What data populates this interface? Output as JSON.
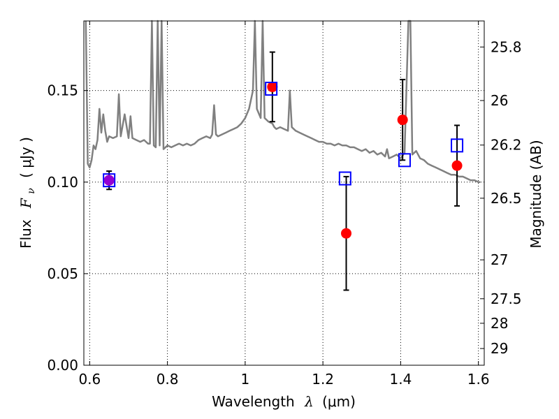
{
  "chart_data": {
    "type": "scatter",
    "title": "",
    "xlabel": "Wavelength",
    "xlabel_symbol": "λ",
    "xlabel_unit": "(μm)",
    "ylabel": "Flux",
    "ylabel_symbol": "F",
    "ylabel_subscript": "ν",
    "ylabel_unit": "( μJy )",
    "y2label": "Magnitude (AB)",
    "xlim": [
      0.585,
      1.615
    ],
    "ylim": [
      0.0,
      0.188
    ],
    "grid": true,
    "grid_style": "dotted",
    "x_ticks": [
      {
        "value": 0.6,
        "label": "0.6"
      },
      {
        "value": 0.8,
        "label": "0.8"
      },
      {
        "value": 1.0,
        "label": "1"
      },
      {
        "value": 1.2,
        "label": "1.2"
      },
      {
        "value": 1.4,
        "label": "1.4"
      },
      {
        "value": 1.6,
        "label": "1.6"
      }
    ],
    "y_ticks": [
      {
        "value": 0.0,
        "label": "0.00"
      },
      {
        "value": 0.05,
        "label": "0.05"
      },
      {
        "value": 0.1,
        "label": "0.10"
      },
      {
        "value": 0.15,
        "label": "0.15"
      }
    ],
    "y2_ticks": [
      {
        "value": 25.8,
        "label": "25.8"
      },
      {
        "value": 26.0,
        "label": "26"
      },
      {
        "value": 26.2,
        "label": "26.2"
      },
      {
        "value": 26.5,
        "label": "26.5"
      },
      {
        "value": 27.0,
        "label": "27"
      },
      {
        "value": 27.5,
        "label": "27.5"
      },
      {
        "value": 28.0,
        "label": "28"
      },
      {
        "value": 29.0,
        "label": "29"
      }
    ],
    "series": [
      {
        "kind": "line",
        "color": "#808080",
        "x": [
          0.59,
          0.595,
          0.6,
          0.605,
          0.61,
          0.615,
          0.62,
          0.625,
          0.63,
          0.635,
          0.64,
          0.645,
          0.65,
          0.66,
          0.67,
          0.675,
          0.68,
          0.69,
          0.7,
          0.705,
          0.71,
          0.72,
          0.73,
          0.74,
          0.75,
          0.755,
          0.76,
          0.765,
          0.77,
          0.775,
          0.78,
          0.785,
          0.79,
          0.8,
          0.81,
          0.82,
          0.83,
          0.84,
          0.85,
          0.86,
          0.87,
          0.88,
          0.89,
          0.9,
          0.91,
          0.915,
          0.92,
          0.925,
          0.93,
          0.94,
          0.95,
          0.96,
          0.97,
          0.98,
          0.99,
          1.0,
          1.01,
          1.02,
          1.025,
          1.03,
          1.04,
          1.045,
          1.05,
          1.06,
          1.07,
          1.075,
          1.08,
          1.09,
          1.1,
          1.11,
          1.115,
          1.12,
          1.13,
          1.14,
          1.15,
          1.16,
          1.17,
          1.18,
          1.19,
          1.2,
          1.21,
          1.22,
          1.23,
          1.24,
          1.25,
          1.26,
          1.27,
          1.28,
          1.29,
          1.3,
          1.31,
          1.32,
          1.33,
          1.34,
          1.35,
          1.36,
          1.365,
          1.37,
          1.38,
          1.39,
          1.4,
          1.41,
          1.42,
          1.425,
          1.43,
          1.44,
          1.45,
          1.46,
          1.47,
          1.48,
          1.49,
          1.5,
          1.51,
          1.52,
          1.53,
          1.54,
          1.55,
          1.56,
          1.57,
          1.58,
          1.59,
          1.6,
          1.605
        ],
        "y": [
          0.188,
          0.11,
          0.108,
          0.112,
          0.12,
          0.118,
          0.123,
          0.14,
          0.127,
          0.137,
          0.128,
          0.122,
          0.125,
          0.124,
          0.125,
          0.148,
          0.125,
          0.137,
          0.124,
          0.136,
          0.124,
          0.123,
          0.122,
          0.123,
          0.121,
          0.121,
          0.188,
          0.12,
          0.119,
          0.188,
          0.12,
          0.188,
          0.118,
          0.12,
          0.119,
          0.12,
          0.121,
          0.12,
          0.121,
          0.12,
          0.121,
          0.123,
          0.124,
          0.125,
          0.124,
          0.126,
          0.142,
          0.126,
          0.125,
          0.126,
          0.127,
          0.128,
          0.129,
          0.13,
          0.132,
          0.135,
          0.14,
          0.15,
          0.188,
          0.14,
          0.135,
          0.188,
          0.135,
          0.133,
          0.132,
          0.13,
          0.129,
          0.13,
          0.129,
          0.128,
          0.15,
          0.13,
          0.128,
          0.127,
          0.126,
          0.125,
          0.124,
          0.123,
          0.122,
          0.122,
          0.121,
          0.121,
          0.12,
          0.121,
          0.12,
          0.12,
          0.119,
          0.119,
          0.118,
          0.117,
          0.118,
          0.116,
          0.117,
          0.115,
          0.116,
          0.114,
          0.118,
          0.113,
          0.114,
          0.115,
          0.113,
          0.116,
          0.188,
          0.188,
          0.115,
          0.117,
          0.113,
          0.112,
          0.11,
          0.109,
          0.108,
          0.107,
          0.106,
          0.105,
          0.104,
          0.104,
          0.103,
          0.103,
          0.102,
          0.101,
          0.101,
          0.1,
          0.1
        ]
      },
      {
        "kind": "points-with-errors",
        "marker": "circle",
        "color": "#ff0000",
        "x": [
          0.65,
          1.07,
          1.26,
          1.405,
          1.545
        ],
        "y": [
          0.101,
          0.152,
          0.072,
          0.134,
          0.109
        ],
        "yerr": [
          0.005,
          0.019,
          0.031,
          0.022,
          0.022
        ]
      },
      {
        "kind": "points",
        "marker": "open-square",
        "color": "#0000ff",
        "x": [
          0.65,
          1.067,
          1.257,
          1.41,
          1.545
        ],
        "y": [
          0.101,
          0.151,
          0.102,
          0.112,
          0.12
        ]
      },
      {
        "kind": "points",
        "marker": "circle",
        "color": "#9400d3",
        "x": [
          0.65
        ],
        "y": [
          0.101
        ]
      }
    ]
  }
}
